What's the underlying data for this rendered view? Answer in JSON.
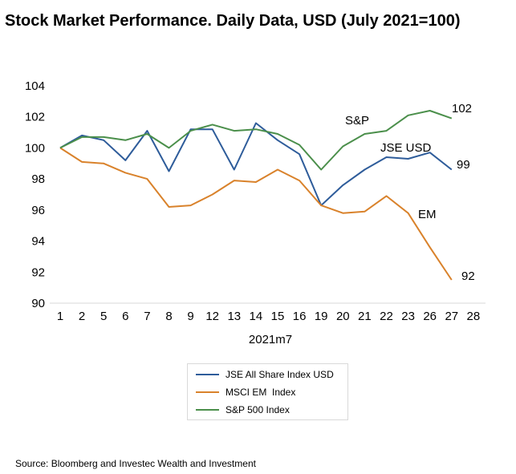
{
  "chart_data": {
    "type": "line",
    "title": "Stock Market Performance. Daily Data, USD (July 2021=100)",
    "xlabel": "2021m7",
    "ylabel": "",
    "categories": [
      "1",
      "2",
      "5",
      "6",
      "7",
      "8",
      "9",
      "12",
      "13",
      "14",
      "15",
      "16",
      "19",
      "20",
      "21",
      "22",
      "23",
      "26",
      "27",
      "28"
    ],
    "ylim": [
      90,
      104
    ],
    "yticks": [
      "90",
      "92",
      "94",
      "96",
      "98",
      "100",
      "102",
      "104"
    ],
    "grid": false,
    "legend_position": "bottom",
    "series": [
      {
        "name": "JSE All Share Index USD",
        "color": "#2e5c9a",
        "values": [
          100,
          100.8,
          100.5,
          99.2,
          101.1,
          98.5,
          101.2,
          101.2,
          98.6,
          101.6,
          100.5,
          99.6,
          96.3,
          97.6,
          98.6,
          99.4,
          99.3,
          99.7,
          98.6,
          null
        ]
      },
      {
        "name": "MSCI EM  Index",
        "color": "#d9822b",
        "values": [
          100,
          99.1,
          99.0,
          98.4,
          98.0,
          96.2,
          96.3,
          97.0,
          97.9,
          97.8,
          98.6,
          97.9,
          96.3,
          95.8,
          95.9,
          96.9,
          95.8,
          93.6,
          91.5,
          null
        ]
      },
      {
        "name": "S&P 500 Index",
        "color": "#4b8f4b",
        "values": [
          100,
          100.7,
          100.7,
          100.5,
          100.9,
          100.0,
          101.1,
          101.5,
          101.1,
          101.2,
          100.9,
          100.2,
          98.6,
          100.1,
          100.9,
          101.1,
          102.1,
          102.4,
          101.9,
          null
        ]
      }
    ],
    "annotations": [
      "S&P",
      "102",
      "JSE USD",
      "99",
      "EM",
      "92"
    ]
  },
  "source": "Source: Bloomberg and Investec Wealth and Investment"
}
